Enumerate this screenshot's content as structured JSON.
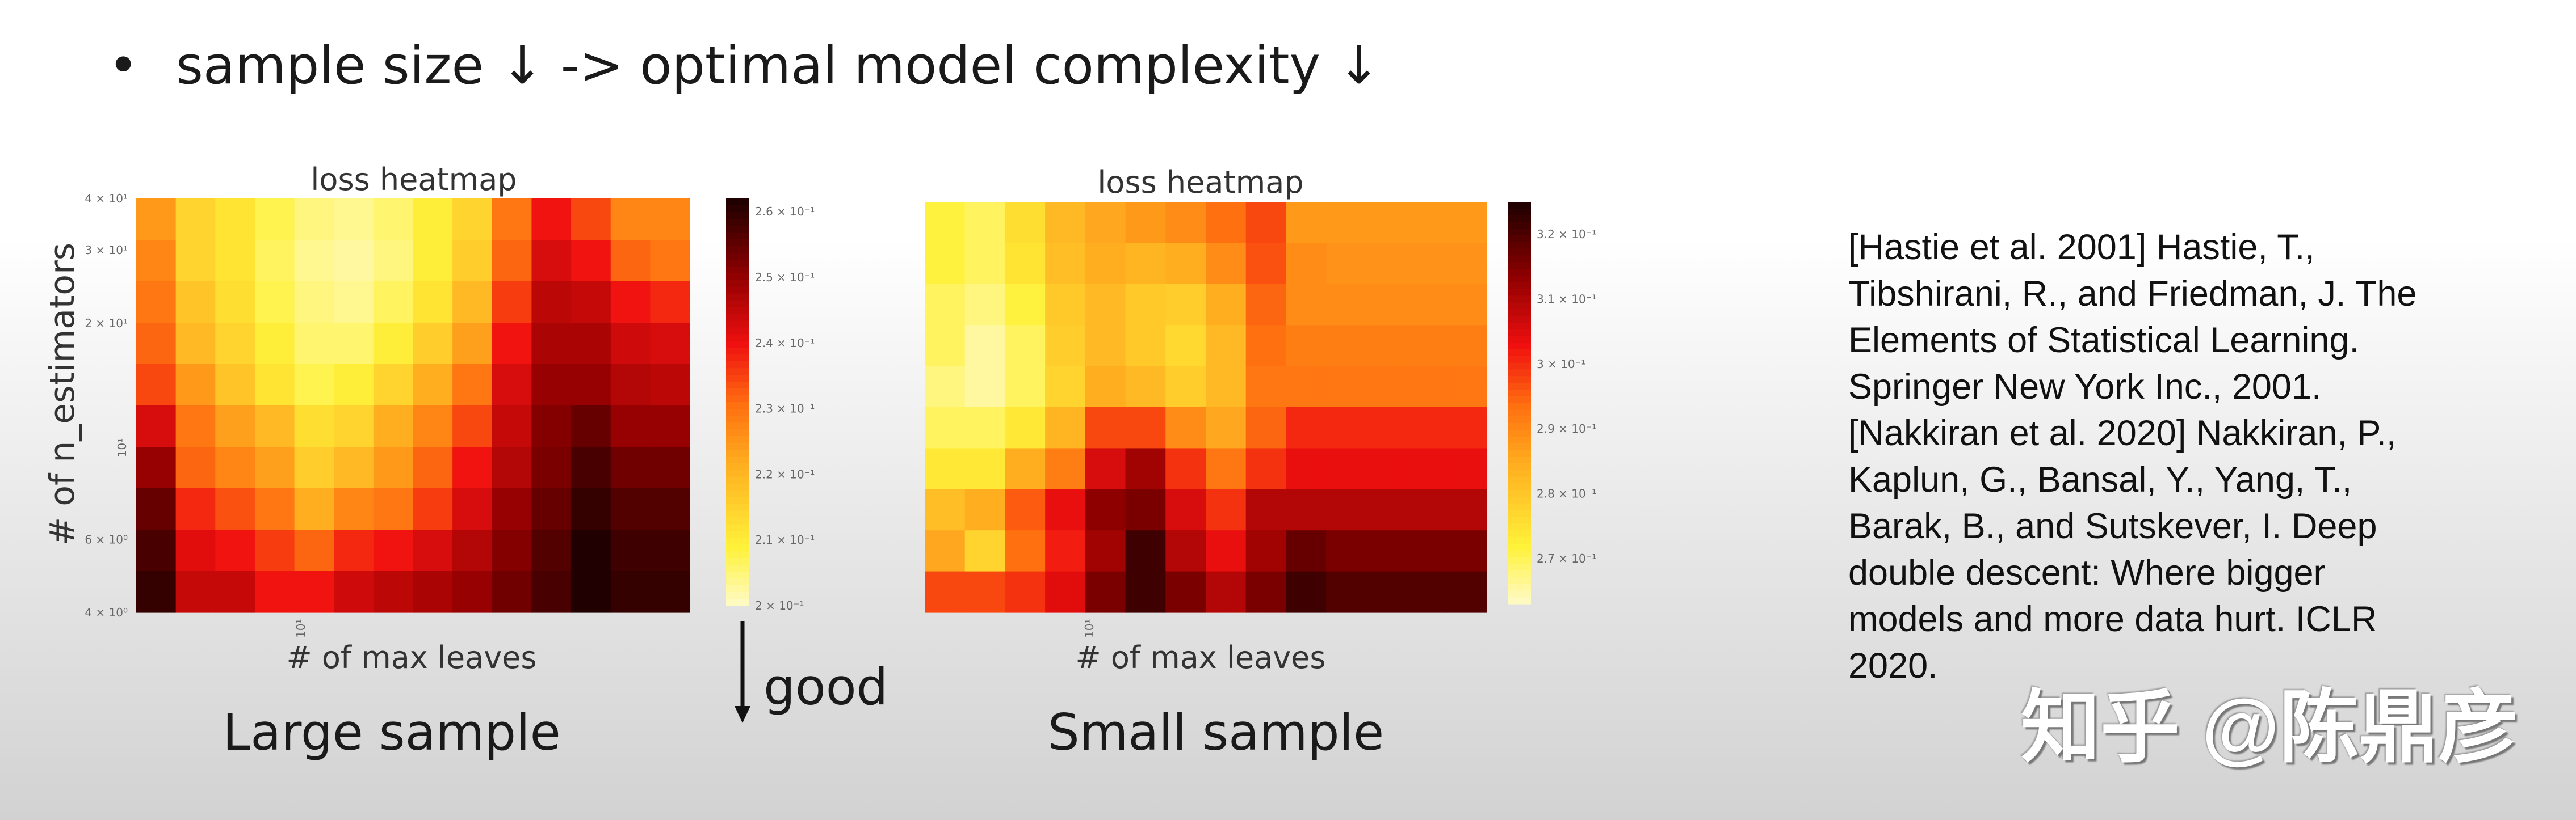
{
  "slide": {
    "bullet": "•",
    "heading": "sample size ↓ -> optimal model complexity ↓",
    "good_label": "good",
    "references": [
      "[Hastie et al. 2001] Hastie, T.,",
      "Tibshirani, R., and Friedman, J. The",
      "Elements of Statistical Learning.",
      "Springer New York Inc., 2001.",
      "[Nakkiran et al. 2020] Nakkiran, P.,",
      "Kaplun, G., Bansal, Y., Yang, T.,",
      "Barak, B., and Sutskever, I. Deep",
      "double descent: Where bigger",
      "models and more data hurt. ICLR",
      "2020."
    ],
    "watermark": "知乎 @陈鼎彦"
  },
  "chart_data": [
    {
      "type": "heatmap",
      "title": "loss heatmap",
      "caption": "Large sample",
      "xlabel": "# of max leaves",
      "ylabel": "# of n_estimators",
      "xticks": [
        {
          "label": "10¹",
          "value": 10
        }
      ],
      "yscale": "log",
      "ylim": [
        4,
        40
      ],
      "yticks": [
        {
          "label": "4 × 10¹",
          "value": 40
        },
        {
          "label": "3 × 10¹",
          "value": 30
        },
        {
          "label": "2 × 10¹",
          "value": 20
        },
        {
          "label": "10¹",
          "value": 10
        },
        {
          "label": "6 × 10⁰",
          "value": 6
        },
        {
          "label": "4 × 10⁰",
          "value": 4
        }
      ],
      "colorbar": {
        "range": [
          0.2,
          0.262
        ],
        "ticks": [
          {
            "label": "2.6 × 10⁻¹",
            "value": 0.26
          },
          {
            "label": "2.5 × 10⁻¹",
            "value": 0.25
          },
          {
            "label": "2.4 × 10⁻¹",
            "value": 0.24
          },
          {
            "label": "2.3 × 10⁻¹",
            "value": 0.23
          },
          {
            "label": "2.2 × 10⁻¹",
            "value": 0.22
          },
          {
            "label": "2.1 × 10⁻¹",
            "value": 0.21
          },
          {
            "label": "2 × 10⁻¹",
            "value": 0.2
          }
        ]
      },
      "values_top_to_bottom": [
        [
          0.225,
          0.215,
          0.212,
          0.208,
          0.205,
          0.204,
          0.206,
          0.21,
          0.215,
          0.23,
          0.24,
          0.235,
          0.228,
          0.228
        ],
        [
          0.228,
          0.215,
          0.212,
          0.207,
          0.204,
          0.203,
          0.205,
          0.21,
          0.216,
          0.232,
          0.243,
          0.24,
          0.232,
          0.23
        ],
        [
          0.23,
          0.218,
          0.213,
          0.208,
          0.205,
          0.204,
          0.207,
          0.212,
          0.22,
          0.236,
          0.246,
          0.245,
          0.24,
          0.238
        ],
        [
          0.232,
          0.22,
          0.215,
          0.21,
          0.206,
          0.206,
          0.21,
          0.216,
          0.224,
          0.24,
          0.248,
          0.248,
          0.244,
          0.243
        ],
        [
          0.235,
          0.225,
          0.218,
          0.212,
          0.208,
          0.21,
          0.215,
          0.222,
          0.23,
          0.243,
          0.25,
          0.25,
          0.247,
          0.246
        ],
        [
          0.243,
          0.23,
          0.224,
          0.22,
          0.213,
          0.215,
          0.222,
          0.228,
          0.235,
          0.245,
          0.252,
          0.255,
          0.25,
          0.25
        ],
        [
          0.25,
          0.232,
          0.228,
          0.224,
          0.216,
          0.22,
          0.225,
          0.232,
          0.24,
          0.247,
          0.253,
          0.258,
          0.254,
          0.254
        ],
        [
          0.255,
          0.238,
          0.234,
          0.23,
          0.222,
          0.228,
          0.23,
          0.236,
          0.243,
          0.25,
          0.255,
          0.26,
          0.257,
          0.257
        ],
        [
          0.258,
          0.242,
          0.24,
          0.236,
          0.232,
          0.238,
          0.24,
          0.243,
          0.247,
          0.252,
          0.257,
          0.262,
          0.259,
          0.259
        ],
        [
          0.26,
          0.245,
          0.245,
          0.24,
          0.24,
          0.244,
          0.246,
          0.248,
          0.25,
          0.254,
          0.258,
          0.262,
          0.26,
          0.26
        ]
      ]
    },
    {
      "type": "heatmap",
      "title": "loss heatmap",
      "caption": "Small sample",
      "xlabel": "# of max leaves",
      "xticks": [
        {
          "label": "10¹",
          "value": 10
        }
      ],
      "colorbar": {
        "range": [
          0.263,
          0.325
        ],
        "ticks": [
          {
            "label": "3.2 × 10⁻¹",
            "value": 0.32
          },
          {
            "label": "3.1 × 10⁻¹",
            "value": 0.31
          },
          {
            "label": "3 × 10⁻¹",
            "value": 0.3
          },
          {
            "label": "2.9 × 10⁻¹",
            "value": 0.29
          },
          {
            "label": "2.8 × 10⁻¹",
            "value": 0.28
          },
          {
            "label": "2.7 × 10⁻¹",
            "value": 0.27
          }
        ]
      },
      "values_top_to_bottom": [
        [
          0.272,
          0.27,
          0.276,
          0.283,
          0.286,
          0.288,
          0.29,
          0.294,
          0.298,
          0.288,
          0.288,
          0.288,
          0.288,
          0.288
        ],
        [
          0.272,
          0.27,
          0.275,
          0.282,
          0.285,
          0.284,
          0.285,
          0.29,
          0.297,
          0.29,
          0.289,
          0.289,
          0.289,
          0.289
        ],
        [
          0.27,
          0.268,
          0.272,
          0.28,
          0.283,
          0.28,
          0.279,
          0.285,
          0.295,
          0.29,
          0.29,
          0.29,
          0.29,
          0.29
        ],
        [
          0.27,
          0.266,
          0.27,
          0.279,
          0.283,
          0.28,
          0.277,
          0.283,
          0.294,
          0.292,
          0.292,
          0.292,
          0.292,
          0.292
        ],
        [
          0.268,
          0.266,
          0.27,
          0.278,
          0.285,
          0.283,
          0.279,
          0.283,
          0.293,
          0.293,
          0.293,
          0.293,
          0.293,
          0.293
        ],
        [
          0.27,
          0.27,
          0.274,
          0.284,
          0.298,
          0.298,
          0.29,
          0.286,
          0.295,
          0.301,
          0.301,
          0.301,
          0.301,
          0.301
        ],
        [
          0.274,
          0.274,
          0.285,
          0.292,
          0.306,
          0.312,
          0.3,
          0.293,
          0.3,
          0.304,
          0.304,
          0.304,
          0.304,
          0.304
        ],
        [
          0.282,
          0.285,
          0.296,
          0.304,
          0.314,
          0.316,
          0.306,
          0.3,
          0.31,
          0.31,
          0.31,
          0.31,
          0.31,
          0.31
        ],
        [
          0.286,
          0.278,
          0.294,
          0.302,
          0.312,
          0.322,
          0.31,
          0.304,
          0.312,
          0.318,
          0.316,
          0.316,
          0.316,
          0.316
        ],
        [
          0.298,
          0.298,
          0.3,
          0.305,
          0.316,
          0.322,
          0.316,
          0.31,
          0.316,
          0.322,
          0.32,
          0.32,
          0.32,
          0.32
        ]
      ]
    }
  ]
}
